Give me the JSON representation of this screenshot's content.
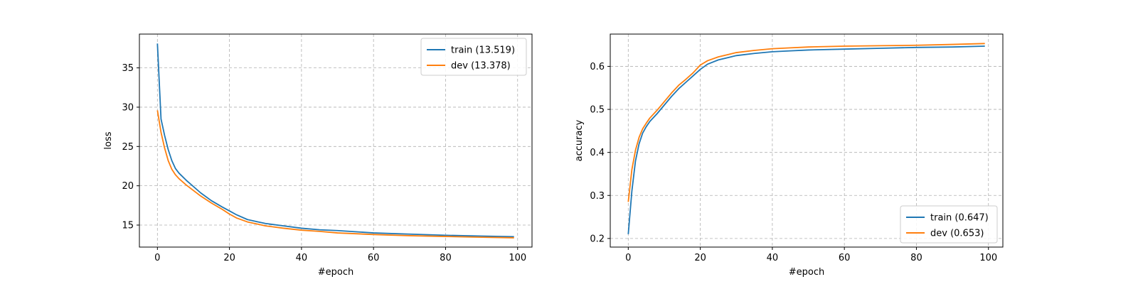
{
  "chart_data": [
    {
      "type": "line",
      "xlabel": "#epoch",
      "ylabel": "loss",
      "xlim": [
        -5,
        104
      ],
      "ylim": [
        12.2,
        39.3
      ],
      "xticks": [
        0,
        20,
        40,
        60,
        80,
        100
      ],
      "yticks": [
        15,
        20,
        25,
        30,
        35
      ],
      "grid": true,
      "legend_position": "top-right",
      "series": [
        {
          "name": "train (13.519)",
          "color": "#1f77b4",
          "x": [
            0,
            1,
            2,
            3,
            4,
            5,
            6,
            8,
            10,
            12,
            15,
            18,
            20,
            22,
            25,
            28,
            30,
            35,
            40,
            45,
            50,
            60,
            70,
            80,
            90,
            99
          ],
          "y": [
            38.1,
            28.5,
            26.4,
            24.6,
            23.2,
            22.2,
            21.6,
            20.7,
            19.9,
            19.1,
            18.1,
            17.3,
            16.8,
            16.3,
            15.7,
            15.4,
            15.2,
            14.9,
            14.6,
            14.4,
            14.3,
            14.0,
            13.85,
            13.7,
            13.6,
            13.519
          ]
        },
        {
          "name": "dev (13.378)",
          "color": "#ff7f0e",
          "x": [
            0,
            1,
            2,
            3,
            4,
            5,
            6,
            8,
            10,
            12,
            15,
            18,
            20,
            22,
            25,
            28,
            30,
            35,
            40,
            45,
            50,
            60,
            70,
            80,
            90,
            99
          ],
          "y": [
            29.6,
            26.8,
            24.8,
            23.2,
            22.1,
            21.4,
            20.9,
            20.1,
            19.4,
            18.7,
            17.8,
            17.0,
            16.4,
            15.9,
            15.4,
            15.1,
            14.9,
            14.6,
            14.35,
            14.2,
            14.0,
            13.8,
            13.65,
            13.55,
            13.45,
            13.378
          ]
        }
      ]
    },
    {
      "type": "line",
      "xlabel": "#epoch",
      "ylabel": "accuracy",
      "xlim": [
        -5,
        104
      ],
      "ylim": [
        0.18,
        0.675
      ],
      "xticks": [
        0,
        20,
        40,
        60,
        80,
        100
      ],
      "yticks": [
        0.2,
        0.3,
        0.4,
        0.5,
        0.6
      ],
      "grid": true,
      "legend_position": "bottom-right",
      "series": [
        {
          "name": "train (0.647)",
          "color": "#1f77b4",
          "x": [
            0,
            1,
            2,
            3,
            4,
            5,
            6,
            8,
            10,
            12,
            14,
            16,
            18,
            20,
            22,
            25,
            28,
            30,
            35,
            40,
            45,
            50,
            60,
            70,
            80,
            90,
            99
          ],
          "y": [
            0.21,
            0.31,
            0.38,
            0.42,
            0.445,
            0.46,
            0.472,
            0.49,
            0.51,
            0.53,
            0.548,
            0.563,
            0.578,
            0.593,
            0.605,
            0.615,
            0.621,
            0.625,
            0.63,
            0.634,
            0.636,
            0.638,
            0.64,
            0.642,
            0.644,
            0.645,
            0.647
          ]
        },
        {
          "name": "dev (0.653)",
          "color": "#ff7f0e",
          "x": [
            0,
            1,
            2,
            3,
            4,
            5,
            6,
            8,
            10,
            12,
            14,
            16,
            18,
            20,
            22,
            25,
            28,
            30,
            35,
            40,
            45,
            50,
            60,
            70,
            80,
            90,
            99
          ],
          "y": [
            0.285,
            0.36,
            0.405,
            0.435,
            0.455,
            0.468,
            0.48,
            0.498,
            0.518,
            0.538,
            0.556,
            0.57,
            0.585,
            0.603,
            0.613,
            0.622,
            0.628,
            0.632,
            0.637,
            0.641,
            0.643,
            0.645,
            0.647,
            0.648,
            0.649,
            0.651,
            0.653
          ]
        }
      ]
    }
  ]
}
